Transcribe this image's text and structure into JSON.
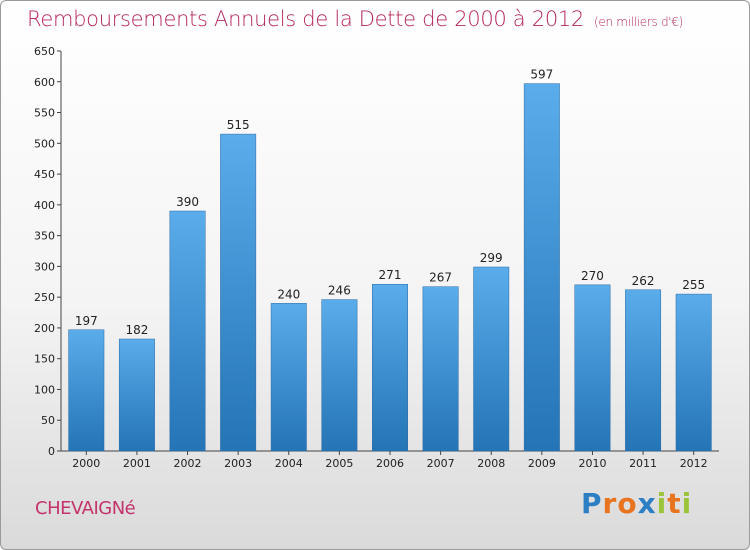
{
  "title": "Remboursements Annuels de la Dette de 2000 à 2012",
  "subtitle": "(en milliers d'€)",
  "commune": "CHEVAIGNé",
  "logo": {
    "letters": [
      "P",
      "r",
      "o",
      "x",
      "i",
      "t",
      "i"
    ],
    "colors": [
      "#2d7fc4",
      "#e8741f",
      "#e8741f",
      "#2d7fc4",
      "#9cc43a",
      "#e8741f",
      "#9cc43a"
    ]
  },
  "colors": {
    "bar_top": "#5aacea",
    "bar_bottom": "#2474b6",
    "title": "#b5265e"
  },
  "chart_data": {
    "type": "bar",
    "categories": [
      "2000",
      "2001",
      "2002",
      "2003",
      "2004",
      "2005",
      "2006",
      "2007",
      "2008",
      "2009",
      "2010",
      "2011",
      "2012"
    ],
    "values": [
      197,
      182,
      390,
      515,
      240,
      246,
      271,
      267,
      299,
      597,
      270,
      262,
      255
    ],
    "ylim": [
      0,
      650
    ],
    "yticks": [
      0,
      50,
      100,
      150,
      200,
      250,
      300,
      350,
      400,
      450,
      500,
      550,
      600,
      650
    ],
    "grid": false,
    "legend": "none"
  }
}
